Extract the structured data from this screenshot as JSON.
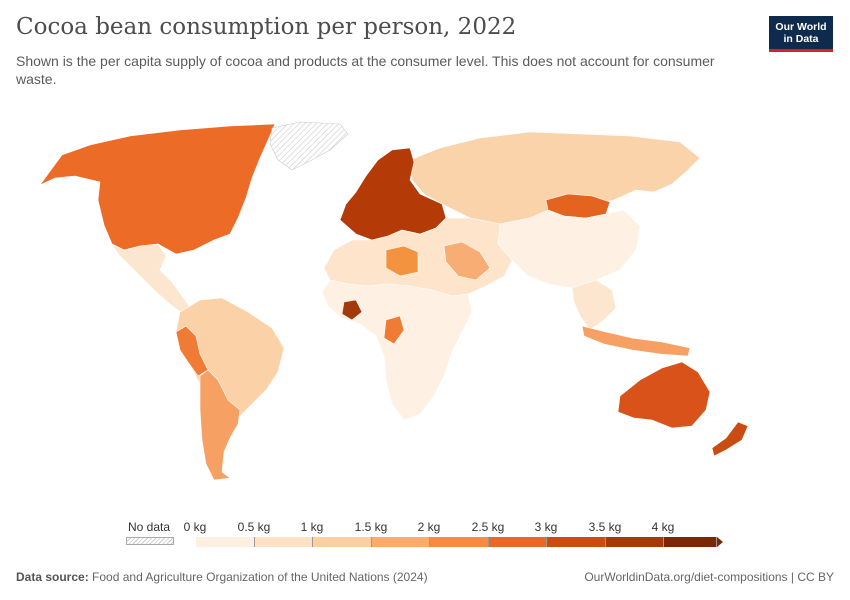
{
  "header": {
    "title": "Cocoa bean consumption per person, 2022",
    "subtitle": "Shown is the per capita supply of cocoa and products at the consumer level. This does not account for consumer waste.",
    "logo_line1": "Our World",
    "logo_line2": "in Data"
  },
  "legend": {
    "no_data_label": "No data",
    "ticks": [
      "0 kg",
      "0.5 kg",
      "1 kg",
      "1.5 kg",
      "2 kg",
      "2.5 kg",
      "3 kg",
      "3.5 kg",
      "4 kg"
    ],
    "bin_colors": [
      "#fef0e0",
      "#fde2c5",
      "#fccfa0",
      "#f9ac6d",
      "#f58b45",
      "#e8672a",
      "#c94d12",
      "#a33a0a",
      "#7a2705"
    ]
  },
  "regions": [
    {
      "name": "Canada and USA",
      "color": "#ec6b27"
    },
    {
      "name": "Greenland",
      "color": "no-data"
    },
    {
      "name": "Mexico and Central America",
      "color": "#fde6cf"
    },
    {
      "name": "South America",
      "color": "#fbd2a8"
    },
    {
      "name": "Peru",
      "color": "#ef7b35"
    },
    {
      "name": "Chile and Argentina",
      "color": "#f6a163"
    },
    {
      "name": "Western Europe",
      "color": "#b43a08"
    },
    {
      "name": "Russia and Central Asia",
      "color": "#fbd3aa"
    },
    {
      "name": "Mongolia",
      "color": "#e4631e"
    },
    {
      "name": "China and East Asia",
      "color": "#fef0e3"
    },
    {
      "name": "North Africa and Middle East",
      "color": "#fde4cb"
    },
    {
      "name": "Libya",
      "color": "#f3933f"
    },
    {
      "name": "Saudi Arabia",
      "color": "#f7ad74"
    },
    {
      "name": "Sub-Saharan Africa",
      "color": "#fef0e3"
    },
    {
      "name": "Côte d'Ivoire",
      "color": "#a33a0a"
    },
    {
      "name": "Gabon and Congo",
      "color": "#ef7b35"
    },
    {
      "name": "Southeast Asia",
      "color": "#fde6cf"
    },
    {
      "name": "Indonesia",
      "color": "#f6a163"
    },
    {
      "name": "Australia",
      "color": "#d9521a"
    },
    {
      "name": "New Zealand",
      "color": "#c94d12"
    }
  ],
  "footer": {
    "source_label": "Data source:",
    "source_text": "Food and Agriculture Organization of the United Nations (2024)",
    "url_text": "OurWorldinData.org/diet-compositions | CC BY"
  }
}
